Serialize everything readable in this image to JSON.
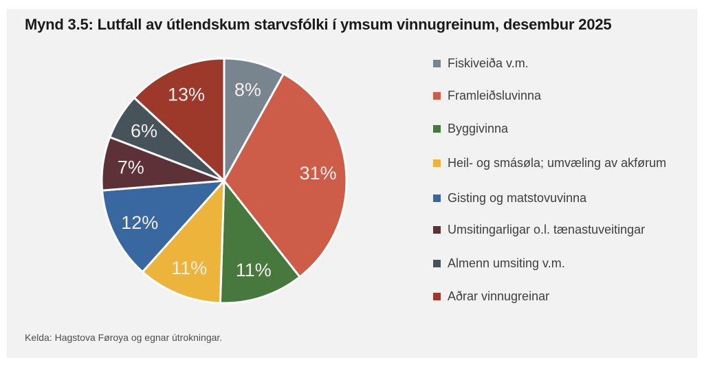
{
  "title": "Mynd 3.5: Lutfall av útlendskum starvsfólki í ymsum vinnugreinum, desembur 2025",
  "source": "Kelda: Hagstova Føroya og egnar útrokningar.",
  "colors": {
    "page_bg": "#ffffff",
    "card_bg": "#f2f2f2",
    "title_text": "#1a1a1a",
    "legend_text": "#3e3e3e",
    "source_text": "#4d4d4d",
    "slice_label": "#f5efec",
    "slice_separator": "#ffffff"
  },
  "chart_data": {
    "type": "pie",
    "title": "Mynd 3.5: Lutfall av útlendskum starvsfólki í ymsum vinnugreinum, desembur 2025",
    "legend_position": "right",
    "start_angle_deg": 0,
    "direction": "clockwise",
    "slices": [
      {
        "label": "Fiskiveiða v.m.",
        "value_pct": 8,
        "display": "8%",
        "color": "#78858f"
      },
      {
        "label": "Framleiðsluvinna",
        "value_pct": 31,
        "display": "31%",
        "color": "#cd5c48"
      },
      {
        "label": "Byggivinna",
        "value_pct": 11,
        "display": "11%",
        "color": "#47793f"
      },
      {
        "label": "Heil- og smásøla; umvæling av akførum",
        "value_pct": 11,
        "display": "11%",
        "color": "#ecb43a"
      },
      {
        "label": "Gisting og matstovuvinna",
        "value_pct": 12,
        "display": "12%",
        "color": "#38689f"
      },
      {
        "label": "Umsitingarligar o.l. tænastuveitingar",
        "value_pct": 7,
        "display": "7%",
        "color": "#5c3137"
      },
      {
        "label": "Almenn umsiting v.m.",
        "value_pct": 6,
        "display": "6%",
        "color": "#46535a"
      },
      {
        "label": "Aðrar vinnugreinar",
        "value_pct": 13,
        "display": "13%",
        "color": "#9c392b"
      }
    ]
  }
}
